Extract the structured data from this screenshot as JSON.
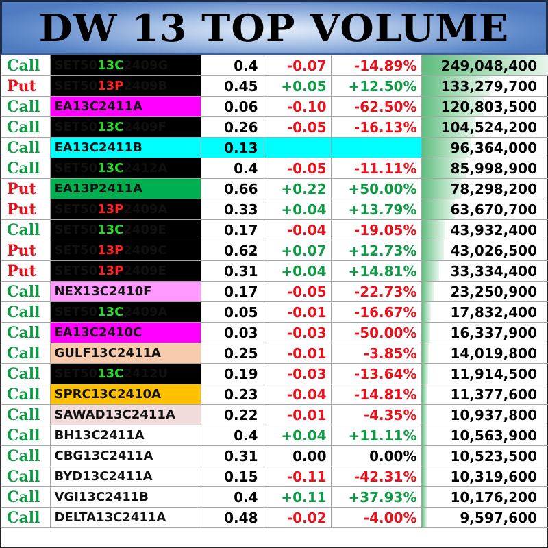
{
  "header": {
    "title": "DW 13 TOP VOLUME"
  },
  "colors": {
    "call": "#0e9a45",
    "put": "#e8101a",
    "header_blue": "#5d88c9",
    "bar_green": "#5fbd80"
  },
  "max_volume": 249048400,
  "rows": [
    {
      "type": "Call",
      "name_pre": "SET50",
      "name_hl": "13C",
      "name_post": "2409G",
      "bg": "black",
      "price": "0.4",
      "change": "-0.07",
      "pct": "-14.89%",
      "volume": "249,048,400",
      "vol": 249048400
    },
    {
      "type": "Put",
      "name_pre": "SET50",
      "name_hl": "13P",
      "name_post": "2409B",
      "bg": "black",
      "price": "0.45",
      "change": "+0.05",
      "pct": "+12.50%",
      "volume": "133,279,700",
      "vol": 133279700
    },
    {
      "type": "Call",
      "name_pre": "EA13C2411A",
      "name_hl": "",
      "name_post": "",
      "bg": "magenta",
      "price": "0.06",
      "change": "-0.10",
      "pct": "-62.50%",
      "volume": "120,803,500",
      "vol": 120803500
    },
    {
      "type": "Call",
      "name_pre": "SET50",
      "name_hl": "13C",
      "name_post": "2409F",
      "bg": "black",
      "price": "0.26",
      "change": "-0.05",
      "pct": "-16.13%",
      "volume": "104,524,200",
      "vol": 104524200
    },
    {
      "type": "Call",
      "name_pre": "EA13C2411B",
      "name_hl": "",
      "name_post": "",
      "bg": "cyan",
      "price": "0.13",
      "change": "",
      "pct": "",
      "volume": "96,364,000",
      "vol": 96364000
    },
    {
      "type": "Call",
      "name_pre": "SET50",
      "name_hl": "13C",
      "name_post": "2412A",
      "bg": "black",
      "price": "0.4",
      "change": "-0.05",
      "pct": "-11.11%",
      "volume": "85,998,900",
      "vol": 85998900
    },
    {
      "type": "Put",
      "name_pre": "EA13P2411A",
      "name_hl": "",
      "name_post": "",
      "bg": "green",
      "price": "0.66",
      "change": "+0.22",
      "pct": "+50.00%",
      "volume": "78,298,200",
      "vol": 78298200
    },
    {
      "type": "Put",
      "name_pre": "SET50",
      "name_hl": "13P",
      "name_post": "2409A",
      "bg": "black",
      "price": "0.33",
      "change": "+0.04",
      "pct": "+13.79%",
      "volume": "63,670,700",
      "vol": 63670700
    },
    {
      "type": "Call",
      "name_pre": "SET50",
      "name_hl": "13C",
      "name_post": "2409E",
      "bg": "black",
      "price": "0.17",
      "change": "-0.04",
      "pct": "-19.05%",
      "volume": "43,932,400",
      "vol": 43932400
    },
    {
      "type": "Put",
      "name_pre": "SET50",
      "name_hl": "13P",
      "name_post": "2409C",
      "bg": "black",
      "price": "0.62",
      "change": "+0.07",
      "pct": "+12.73%",
      "volume": "43,026,500",
      "vol": 43026500
    },
    {
      "type": "Put",
      "name_pre": "SET50",
      "name_hl": "13P",
      "name_post": "2409E",
      "bg": "black",
      "price": "0.31",
      "change": "+0.04",
      "pct": "+14.81%",
      "volume": "33,334,400",
      "vol": 33334400
    },
    {
      "type": "Call",
      "name_pre": "NEX13C2410F",
      "name_hl": "",
      "name_post": "",
      "bg": "pink",
      "price": "0.17",
      "change": "-0.05",
      "pct": "-22.73%",
      "volume": "23,250,900",
      "vol": 23250900
    },
    {
      "type": "Call",
      "name_pre": "SET50",
      "name_hl": "13C",
      "name_post": "2409A",
      "bg": "black",
      "price": "0.05",
      "change": "-0.01",
      "pct": "-16.67%",
      "volume": "17,832,400",
      "vol": 17832400
    },
    {
      "type": "Call",
      "name_pre": "EA13C2410C",
      "name_hl": "",
      "name_post": "",
      "bg": "magenta",
      "price": "0.03",
      "change": "-0.03",
      "pct": "-50.00%",
      "volume": "16,337,900",
      "vol": 16337900
    },
    {
      "type": "Call",
      "name_pre": "GULF13C2411A",
      "name_hl": "",
      "name_post": "",
      "bg": "peach",
      "price": "0.25",
      "change": "-0.01",
      "pct": "-3.85%",
      "volume": "14,019,800",
      "vol": 14019800
    },
    {
      "type": "Call",
      "name_pre": "SET50",
      "name_hl": "13C",
      "name_post": "2412U",
      "bg": "black",
      "price": "0.19",
      "change": "-0.03",
      "pct": "-13.64%",
      "volume": "11,914,500",
      "vol": 11914500
    },
    {
      "type": "Call",
      "name_pre": "SPRC13C2410A",
      "name_hl": "",
      "name_post": "",
      "bg": "orange",
      "price": "0.23",
      "change": "-0.04",
      "pct": "-14.81%",
      "volume": "11,377,600",
      "vol": 11377600
    },
    {
      "type": "Call",
      "name_pre": "SAWAD13C2411A",
      "name_hl": "",
      "name_post": "",
      "bg": "rose",
      "price": "0.22",
      "change": "-0.01",
      "pct": "-4.35%",
      "volume": "10,937,800",
      "vol": 10937800
    },
    {
      "type": "Call",
      "name_pre": "BH13C2411A",
      "name_hl": "",
      "name_post": "",
      "bg": "white",
      "price": "0.4",
      "change": "+0.04",
      "pct": "+11.11%",
      "volume": "10,563,900",
      "vol": 10563900
    },
    {
      "type": "Call",
      "name_pre": "CBG13C2411A",
      "name_hl": "",
      "name_post": "",
      "bg": "white",
      "price": "0.31",
      "change": "0.00",
      "pct": "0.00%",
      "volume": "10,523,500",
      "vol": 10523500
    },
    {
      "type": "Call",
      "name_pre": "BYD13C2411A",
      "name_hl": "",
      "name_post": "",
      "bg": "white",
      "price": "0.15",
      "change": "-0.11",
      "pct": "-42.31%",
      "volume": "10,319,600",
      "vol": 10319600
    },
    {
      "type": "Call",
      "name_pre": "VGI13C2411B",
      "name_hl": "",
      "name_post": "",
      "bg": "white",
      "price": "0.4",
      "change": "+0.11",
      "pct": "+37.93%",
      "volume": "10,176,200",
      "vol": 10176200
    },
    {
      "type": "Call",
      "name_pre": "DELTA13C2411A",
      "name_hl": "",
      "name_post": "",
      "bg": "white",
      "price": "0.48",
      "change": "-0.02",
      "pct": "-4.00%",
      "volume": "9,597,600",
      "vol": 9597600
    }
  ]
}
